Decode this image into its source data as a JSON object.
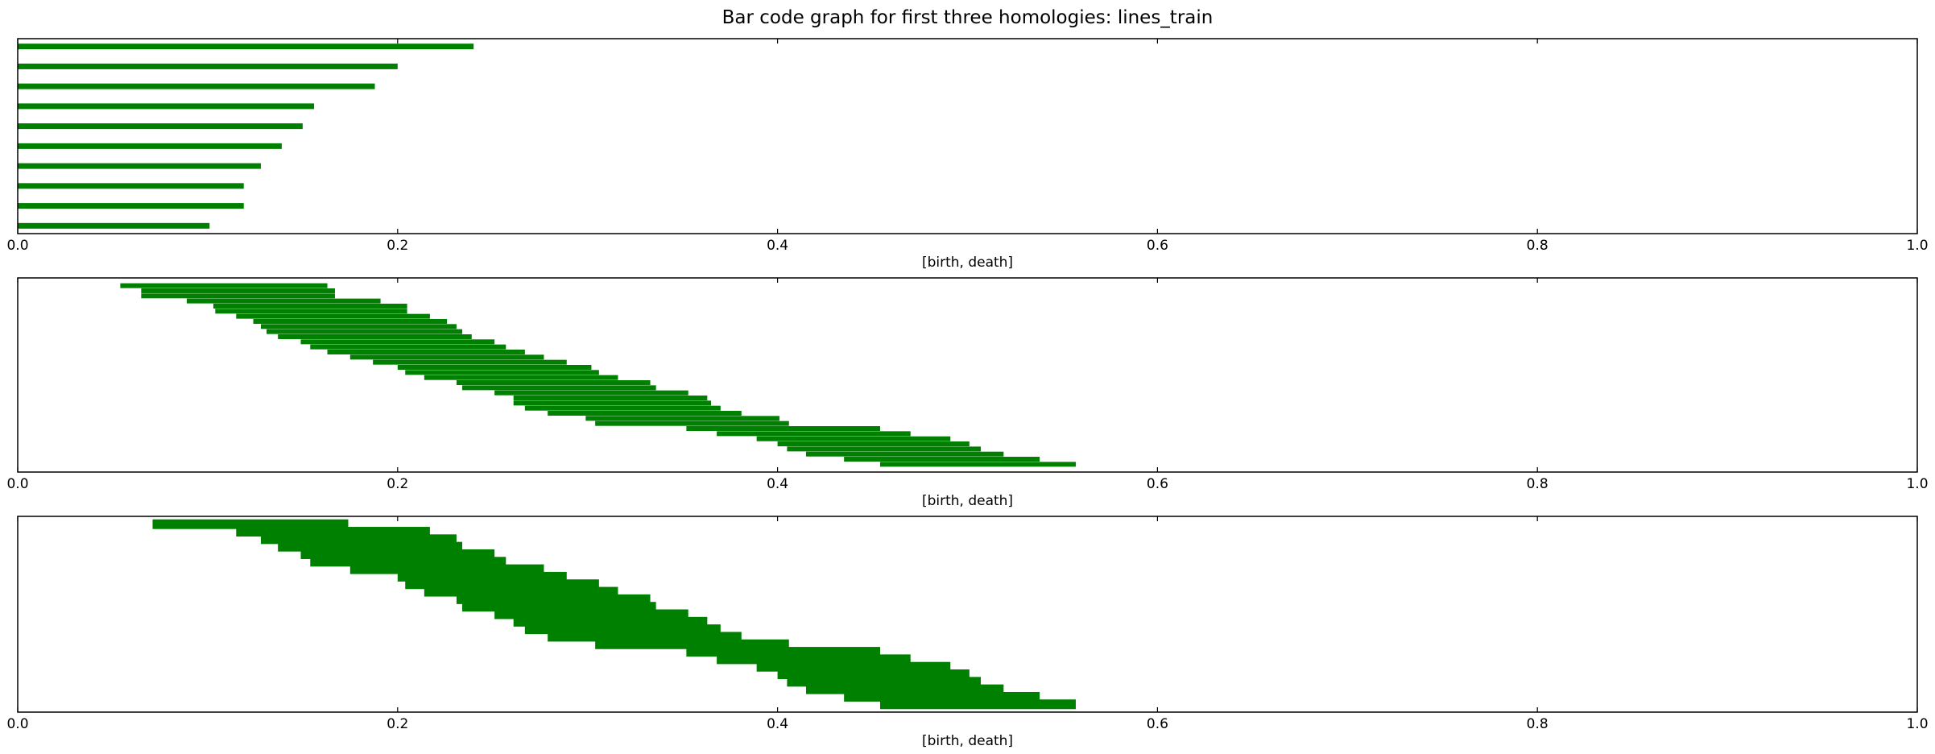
{
  "figure": {
    "title": "Bar code graph for first three homologies: lines_train"
  },
  "chart_data": [
    {
      "type": "bar",
      "orientation": "horizontal",
      "xlabel": "[birth, death]",
      "xlim": [
        0,
        1
      ],
      "xticks": [
        0.0,
        0.2,
        0.4,
        0.6,
        0.8,
        1.0
      ],
      "xtick_labels": [
        "0.0",
        "0.2",
        "0.4",
        "0.6",
        "0.8",
        "1.0"
      ],
      "yticks": "none",
      "grid": false,
      "bar_color": "#008000",
      "bars": [
        {
          "birth": 0.0,
          "death": 0.24
        },
        {
          "birth": 0.0,
          "death": 0.2
        },
        {
          "birth": 0.0,
          "death": 0.188
        },
        {
          "birth": 0.0,
          "death": 0.156
        },
        {
          "birth": 0.0,
          "death": 0.15
        },
        {
          "birth": 0.0,
          "death": 0.139
        },
        {
          "birth": 0.0,
          "death": 0.128
        },
        {
          "birth": 0.0,
          "death": 0.119
        },
        {
          "birth": 0.0,
          "death": 0.119
        },
        {
          "birth": 0.0,
          "death": 0.101
        }
      ]
    },
    {
      "type": "bar",
      "orientation": "horizontal",
      "xlabel": "[birth, death]",
      "xlim": [
        0,
        1
      ],
      "xticks": [
        0.0,
        0.2,
        0.4,
        0.6,
        0.8,
        1.0
      ],
      "xtick_labels": [
        "0.0",
        "0.2",
        "0.4",
        "0.6",
        "0.8",
        "1.0"
      ],
      "yticks": "none",
      "grid": false,
      "bar_color": "#008000",
      "bars": [
        {
          "birth": 0.054,
          "death": 0.163
        },
        {
          "birth": 0.065,
          "death": 0.167
        },
        {
          "birth": 0.065,
          "death": 0.167
        },
        {
          "birth": 0.089,
          "death": 0.191
        },
        {
          "birth": 0.103,
          "death": 0.205
        },
        {
          "birth": 0.104,
          "death": 0.205
        },
        {
          "birth": 0.115,
          "death": 0.217
        },
        {
          "birth": 0.124,
          "death": 0.226
        },
        {
          "birth": 0.128,
          "death": 0.231
        },
        {
          "birth": 0.131,
          "death": 0.234
        },
        {
          "birth": 0.137,
          "death": 0.239
        },
        {
          "birth": 0.149,
          "death": 0.251
        },
        {
          "birth": 0.154,
          "death": 0.257
        },
        {
          "birth": 0.163,
          "death": 0.267
        },
        {
          "birth": 0.175,
          "death": 0.277
        },
        {
          "birth": 0.187,
          "death": 0.289
        },
        {
          "birth": 0.2,
          "death": 0.302
        },
        {
          "birth": 0.204,
          "death": 0.306
        },
        {
          "birth": 0.214,
          "death": 0.316
        },
        {
          "birth": 0.231,
          "death": 0.333
        },
        {
          "birth": 0.234,
          "death": 0.336
        },
        {
          "birth": 0.251,
          "death": 0.353
        },
        {
          "birth": 0.261,
          "death": 0.363
        },
        {
          "birth": 0.261,
          "death": 0.365
        },
        {
          "birth": 0.267,
          "death": 0.37
        },
        {
          "birth": 0.279,
          "death": 0.381
        },
        {
          "birth": 0.299,
          "death": 0.401
        },
        {
          "birth": 0.304,
          "death": 0.406
        },
        {
          "birth": 0.352,
          "death": 0.454
        },
        {
          "birth": 0.368,
          "death": 0.47
        },
        {
          "birth": 0.389,
          "death": 0.491
        },
        {
          "birth": 0.4,
          "death": 0.501
        },
        {
          "birth": 0.405,
          "death": 0.507
        },
        {
          "birth": 0.415,
          "death": 0.519
        },
        {
          "birth": 0.435,
          "death": 0.538
        },
        {
          "birth": 0.454,
          "death": 0.557
        }
      ]
    },
    {
      "type": "bar",
      "orientation": "horizontal",
      "xlabel": "[birth, death]",
      "xlim": [
        0,
        1
      ],
      "xticks": [
        0.0,
        0.2,
        0.4,
        0.6,
        0.8,
        1.0
      ],
      "xtick_labels": [
        "0.0",
        "0.2",
        "0.4",
        "0.6",
        "0.8",
        "1.0"
      ],
      "yticks": "none",
      "grid": false,
      "bar_color": "#008000",
      "bars": [
        {
          "birth": 0.071,
          "death": 0.174
        },
        {
          "birth": 0.115,
          "death": 0.217
        },
        {
          "birth": 0.128,
          "death": 0.231
        },
        {
          "birth": 0.137,
          "death": 0.234
        },
        {
          "birth": 0.149,
          "death": 0.251
        },
        {
          "birth": 0.154,
          "death": 0.257
        },
        {
          "birth": 0.175,
          "death": 0.277
        },
        {
          "birth": 0.2,
          "death": 0.289
        },
        {
          "birth": 0.204,
          "death": 0.306
        },
        {
          "birth": 0.214,
          "death": 0.316
        },
        {
          "birth": 0.231,
          "death": 0.333
        },
        {
          "birth": 0.234,
          "death": 0.336
        },
        {
          "birth": 0.251,
          "death": 0.353
        },
        {
          "birth": 0.261,
          "death": 0.363
        },
        {
          "birth": 0.267,
          "death": 0.37
        },
        {
          "birth": 0.279,
          "death": 0.381
        },
        {
          "birth": 0.304,
          "death": 0.406
        },
        {
          "birth": 0.352,
          "death": 0.454
        },
        {
          "birth": 0.368,
          "death": 0.47
        },
        {
          "birth": 0.389,
          "death": 0.491
        },
        {
          "birth": 0.4,
          "death": 0.501
        },
        {
          "birth": 0.405,
          "death": 0.507
        },
        {
          "birth": 0.415,
          "death": 0.519
        },
        {
          "birth": 0.435,
          "death": 0.538
        },
        {
          "birth": 0.454,
          "death": 0.557
        }
      ]
    }
  ]
}
